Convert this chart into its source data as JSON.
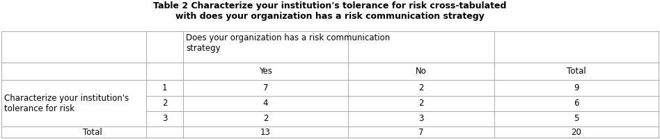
{
  "title_line1": "Table 2 Characterize your institution's tolerance for risk cross-tabulated",
  "title_line2": "with does your organization has a risk communication strategy",
  "span_header": "Does your organization has a risk communication\nstrategy",
  "col_sub_yes": "Yes",
  "col_sub_no": "No",
  "col_total": "Total",
  "row_label": "Characterize your institution's\ntolerance for risk",
  "row_numbers": [
    "1",
    "2",
    "3"
  ],
  "data": [
    [
      7,
      2,
      9
    ],
    [
      4,
      2,
      6
    ],
    [
      2,
      3,
      5
    ]
  ],
  "totals": [
    13,
    7,
    20
  ],
  "total_label": "Total",
  "bg_color": "#ffffff",
  "line_color": "#aaaaaa",
  "title_fontsize": 9.0,
  "cell_fontsize": 8.5
}
